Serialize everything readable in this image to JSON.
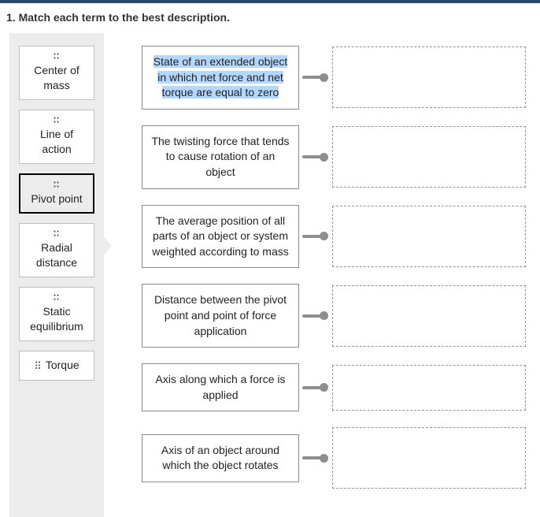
{
  "question": {
    "number": "1.",
    "prompt": "Match each term to the best description."
  },
  "terms": [
    {
      "label": "Center of mass",
      "selected": false,
      "multiline": true
    },
    {
      "label": "Line of action",
      "selected": false,
      "multiline": true
    },
    {
      "label": "Pivot point",
      "selected": true,
      "multiline": false
    },
    {
      "label": "Radial distance",
      "selected": false,
      "multiline": true
    },
    {
      "label": "Static equilibrium",
      "selected": false,
      "multiline": true
    },
    {
      "label": "Torque",
      "selected": false,
      "multiline": false,
      "inline_grip": true
    }
  ],
  "descriptions": [
    {
      "text": "State of an extended object in which net force and net torque are equal to zero",
      "highlighted": true
    },
    {
      "text": "The twisting force that tends to cause rotation of an object",
      "highlighted": false
    },
    {
      "text": "The average position of all parts of an object or system weighted according to mass",
      "highlighted": false
    },
    {
      "text": "Distance between the pivot point and point of force application",
      "highlighted": false
    },
    {
      "text": "Axis along which a force is applied",
      "highlighted": false
    },
    {
      "text": "Axis of an object around which the object rotates",
      "highlighted": false
    }
  ],
  "colors": {
    "accent_bar": "#2b4a6f",
    "bank_bg": "#ececec",
    "border": "#8a8a8a",
    "connector": "#8e8e8e",
    "highlight": "#b3d7ff"
  }
}
